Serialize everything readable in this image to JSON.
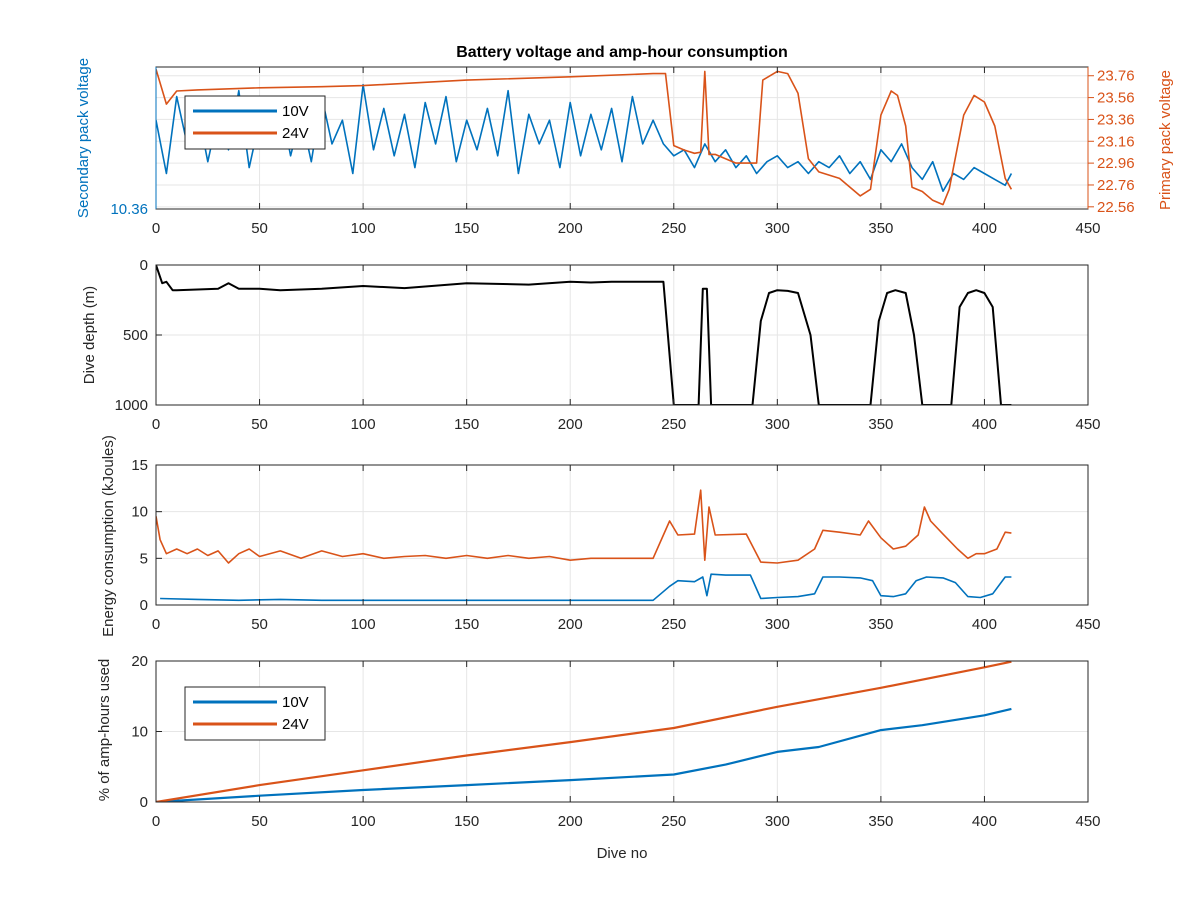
{
  "colors": {
    "blue": "#0072BD",
    "orange": "#D95319",
    "black": "#000000",
    "axis": "#262626",
    "grid": "#e6e6e6"
  },
  "xlabel": "Dive no",
  "chart_data": [
    {
      "type": "line",
      "title": "Battery voltage and amp-hour consumption",
      "ylabel": "Secondary pack voltage",
      "ylabel_right": "Primary pack voltage",
      "xlim": [
        0,
        450
      ],
      "xticks": [
        "0",
        "50",
        "100",
        "150",
        "200",
        "250",
        "300",
        "350",
        "400",
        "450"
      ],
      "ylim": [
        10.36,
        10.6
      ],
      "yticks_left": [
        "10.36"
      ],
      "ylim_right": [
        22.54,
        23.84
      ],
      "yticks_right": [
        "22.56",
        "22.76",
        "22.96",
        "23.16",
        "23.36",
        "23.56",
        "23.76"
      ],
      "grid": true,
      "legend": {
        "placement": "top-left",
        "entries": [
          "10V",
          "24V"
        ]
      },
      "series": [
        {
          "name": "10V",
          "axis": "left",
          "color": "#0072BD",
          "x": [
            0,
            5,
            10,
            15,
            20,
            25,
            30,
            35,
            40,
            45,
            50,
            55,
            60,
            65,
            70,
            75,
            80,
            85,
            90,
            95,
            100,
            105,
            110,
            115,
            120,
            125,
            130,
            135,
            140,
            145,
            150,
            155,
            160,
            165,
            170,
            175,
            180,
            185,
            190,
            195,
            200,
            205,
            210,
            215,
            220,
            225,
            230,
            235,
            240,
            245,
            250,
            255,
            260,
            265,
            270,
            275,
            280,
            285,
            290,
            295,
            300,
            305,
            310,
            315,
            320,
            325,
            330,
            335,
            340,
            345,
            350,
            355,
            360,
            365,
            370,
            375,
            380,
            385,
            390,
            395,
            400,
            405,
            410,
            413
          ],
          "values": [
            10.51,
            10.42,
            10.55,
            10.47,
            10.53,
            10.44,
            10.52,
            10.46,
            10.56,
            10.43,
            10.51,
            10.48,
            10.54,
            10.45,
            10.52,
            10.44,
            10.55,
            10.47,
            10.51,
            10.42,
            10.57,
            10.46,
            10.53,
            10.45,
            10.52,
            10.43,
            10.54,
            10.47,
            10.55,
            10.44,
            10.51,
            10.46,
            10.53,
            10.45,
            10.56,
            10.42,
            10.52,
            10.47,
            10.51,
            10.43,
            10.54,
            10.45,
            10.52,
            10.46,
            10.53,
            10.44,
            10.55,
            10.47,
            10.51,
            10.47,
            10.45,
            10.46,
            10.43,
            10.47,
            10.44,
            10.46,
            10.43,
            10.45,
            10.42,
            10.44,
            10.45,
            10.43,
            10.44,
            10.42,
            10.44,
            10.43,
            10.45,
            10.42,
            10.44,
            10.41,
            10.46,
            10.44,
            10.47,
            10.43,
            10.41,
            10.44,
            10.39,
            10.42,
            10.41,
            10.43,
            10.42,
            10.41,
            10.4,
            10.42
          ]
        },
        {
          "name": "24V",
          "axis": "right",
          "color": "#D95319",
          "x": [
            0,
            5,
            10,
            20,
            50,
            80,
            100,
            150,
            200,
            240,
            246,
            250,
            255,
            260,
            263,
            265,
            267,
            270,
            280,
            290,
            293,
            300,
            305,
            310,
            315,
            320,
            330,
            340,
            345,
            350,
            355,
            358,
            362,
            365,
            370,
            375,
            380,
            383,
            390,
            395,
            400,
            405,
            410,
            413
          ],
          "values": [
            23.82,
            23.5,
            23.62,
            23.63,
            23.65,
            23.66,
            23.67,
            23.72,
            23.75,
            23.78,
            23.78,
            23.12,
            23.08,
            23.05,
            23.06,
            23.8,
            23.04,
            23.04,
            22.96,
            22.96,
            23.72,
            23.8,
            23.78,
            23.6,
            23.0,
            22.88,
            22.82,
            22.66,
            22.72,
            23.4,
            23.62,
            23.58,
            23.3,
            22.74,
            22.7,
            22.62,
            22.58,
            22.72,
            23.4,
            23.58,
            23.52,
            23.3,
            22.82,
            22.72
          ]
        }
      ]
    },
    {
      "type": "line",
      "ylabel": "Dive depth (m)",
      "xlim": [
        0,
        450
      ],
      "xticks": [
        "0",
        "50",
        "100",
        "150",
        "200",
        "250",
        "300",
        "350",
        "400",
        "450"
      ],
      "ylim": [
        0,
        1000
      ],
      "yticks": [
        "0",
        "500",
        "1000"
      ],
      "y_reversed": true,
      "grid": true,
      "series": [
        {
          "color": "#000000",
          "x": [
            0,
            3,
            5,
            8,
            10,
            20,
            30,
            35,
            40,
            50,
            60,
            70,
            80,
            100,
            120,
            150,
            180,
            200,
            210,
            220,
            240,
            245,
            250,
            255,
            260,
            262,
            264,
            266,
            268,
            270,
            280,
            288,
            292,
            296,
            300,
            305,
            310,
            316,
            320,
            330,
            345,
            349,
            353,
            357,
            362,
            366,
            370,
            375,
            384,
            388,
            392,
            396,
            400,
            404,
            408,
            413
          ],
          "values": [
            0,
            130,
            120,
            180,
            180,
            175,
            170,
            130,
            170,
            170,
            180,
            175,
            170,
            150,
            165,
            130,
            140,
            120,
            125,
            120,
            120,
            120,
            1000,
            1000,
            1000,
            1000,
            170,
            170,
            1000,
            1000,
            1000,
            1000,
            400,
            200,
            180,
            185,
            200,
            500,
            1000,
            1000,
            1000,
            400,
            200,
            180,
            200,
            500,
            1000,
            1000,
            1000,
            300,
            200,
            180,
            200,
            300,
            1000,
            1000
          ]
        }
      ]
    },
    {
      "type": "line",
      "ylabel": "Energy consumption (kJoules)",
      "xlim": [
        0,
        450
      ],
      "xticks": [
        "0",
        "50",
        "100",
        "150",
        "200",
        "250",
        "300",
        "350",
        "400",
        "450"
      ],
      "ylim": [
        0,
        15
      ],
      "yticks": [
        "0",
        "5",
        "10",
        "15"
      ],
      "grid": true,
      "series": [
        {
          "color": "#0072BD",
          "x": [
            2,
            20,
            40,
            60,
            80,
            100,
            120,
            140,
            160,
            180,
            200,
            220,
            240,
            248,
            252,
            260,
            264,
            266,
            268,
            275,
            287,
            292,
            300,
            310,
            318,
            322,
            330,
            340,
            346,
            350,
            356,
            362,
            367,
            372,
            380,
            386,
            392,
            398,
            404,
            410,
            413
          ],
          "values": [
            0.7,
            0.6,
            0.5,
            0.6,
            0.5,
            0.5,
            0.5,
            0.5,
            0.5,
            0.5,
            0.5,
            0.5,
            0.5,
            2.0,
            2.6,
            2.5,
            3.0,
            1.0,
            3.3,
            3.2,
            3.2,
            0.7,
            0.8,
            0.9,
            1.2,
            3.0,
            3.0,
            2.9,
            2.6,
            1.0,
            0.9,
            1.2,
            2.6,
            3.0,
            2.9,
            2.4,
            0.9,
            0.8,
            1.2,
            3.0,
            3.0
          ]
        },
        {
          "color": "#D95319",
          "x": [
            0,
            2,
            5,
            10,
            15,
            20,
            25,
            30,
            35,
            40,
            45,
            50,
            60,
            70,
            80,
            90,
            100,
            110,
            120,
            130,
            140,
            150,
            160,
            170,
            180,
            190,
            200,
            210,
            220,
            230,
            240,
            248,
            252,
            260,
            263,
            265,
            267,
            270,
            285,
            292,
            300,
            310,
            318,
            322,
            330,
            340,
            344,
            350,
            356,
            362,
            368,
            371,
            374,
            380,
            387,
            392,
            396,
            400,
            406,
            410,
            413
          ],
          "values": [
            9.5,
            7.0,
            5.5,
            6.0,
            5.5,
            6.0,
            5.3,
            5.8,
            4.5,
            5.5,
            6.0,
            5.2,
            5.8,
            5.0,
            5.8,
            5.2,
            5.5,
            5.0,
            5.2,
            5.3,
            5.0,
            5.3,
            5.0,
            5.3,
            5.0,
            5.2,
            4.8,
            5.0,
            5.0,
            5.0,
            5.0,
            9.0,
            7.5,
            7.6,
            12.3,
            4.8,
            10.5,
            7.5,
            7.6,
            4.6,
            4.5,
            4.8,
            6.0,
            8.0,
            7.8,
            7.5,
            9.0,
            7.2,
            6.0,
            6.3,
            7.5,
            10.5,
            9.0,
            7.6,
            6.0,
            5.0,
            5.5,
            5.5,
            6.0,
            7.8,
            7.7
          ]
        }
      ]
    },
    {
      "type": "line",
      "ylabel": "% of amp-hours used",
      "xlim": [
        0,
        450
      ],
      "xticks": [
        "0",
        "50",
        "100",
        "150",
        "200",
        "250",
        "300",
        "350",
        "400",
        "450"
      ],
      "ylim": [
        0,
        20
      ],
      "yticks": [
        "0",
        "10",
        "20"
      ],
      "grid": true,
      "legend": {
        "placement": "top-left",
        "entries": [
          "10V",
          "24V"
        ]
      },
      "series": [
        {
          "name": "10V",
          "color": "#0072BD",
          "x": [
            0,
            50,
            100,
            150,
            200,
            250,
            275,
            300,
            320,
            350,
            370,
            400,
            413
          ],
          "values": [
            0,
            0.9,
            1.7,
            2.4,
            3.1,
            3.9,
            5.3,
            7.1,
            7.8,
            10.2,
            10.9,
            12.3,
            13.2
          ],
          "label_hidden": true
        },
        {
          "name": "24V",
          "color": "#D95319",
          "x": [
            0,
            50,
            100,
            150,
            200,
            250,
            300,
            350,
            400,
            413
          ],
          "values": [
            0,
            2.4,
            4.5,
            6.6,
            8.5,
            10.5,
            13.5,
            16.2,
            19.1,
            19.9
          ]
        }
      ]
    }
  ]
}
